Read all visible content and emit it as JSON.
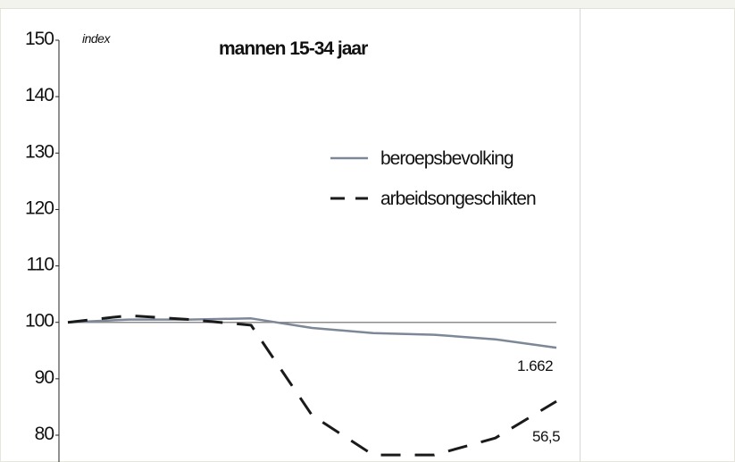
{
  "chart_data": {
    "type": "line",
    "title": "mannen 15-34 jaar",
    "ylabel": "index",
    "ylim": [
      75,
      150
    ],
    "yticks": [
      150,
      140,
      130,
      120,
      110,
      100,
      90,
      80
    ],
    "x": [
      0,
      1,
      2,
      3,
      4,
      5,
      6,
      7,
      8
    ],
    "reference_line": 100,
    "series": [
      {
        "name": "beroepsbevolking",
        "color": "#7c8797",
        "style": "solid",
        "values": [
          100,
          100.5,
          100.5,
          100.7,
          99,
          98.1,
          97.8,
          97,
          95.5
        ],
        "end_label": "1.662"
      },
      {
        "name": "arbeidsongeschikten",
        "color": "#1a1a1a",
        "style": "dashed",
        "values": [
          100,
          101.2,
          100.5,
          99.5,
          83.5,
          76.5,
          76.5,
          79.5,
          86
        ],
        "end_label": "56,5"
      }
    ],
    "legend": "upper right",
    "grid": false
  }
}
